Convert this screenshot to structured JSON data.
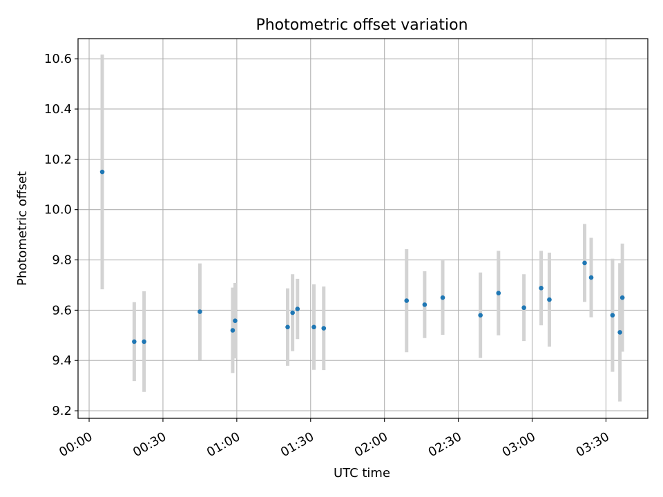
{
  "chart_data": {
    "type": "scatter",
    "title": "Photometric offset variation",
    "xlabel": "UTC time",
    "ylabel": "Photometric offset",
    "x_axis": {
      "type": "time",
      "range_minutes": [
        -4.5,
        227
      ],
      "ticks": [
        {
          "minutes": 0,
          "label": "00:00"
        },
        {
          "minutes": 30,
          "label": "00:30"
        },
        {
          "minutes": 60,
          "label": "01:00"
        },
        {
          "minutes": 90,
          "label": "01:30"
        },
        {
          "minutes": 120,
          "label": "02:00"
        },
        {
          "minutes": 150,
          "label": "02:30"
        },
        {
          "minutes": 180,
          "label": "03:00"
        },
        {
          "minutes": 210,
          "label": "03:30"
        }
      ]
    },
    "y_axis": {
      "ylim": [
        9.17,
        10.68
      ],
      "ticks": [
        {
          "value": 9.2,
          "label": "9.2"
        },
        {
          "value": 9.4,
          "label": "9.4"
        },
        {
          "value": 9.6,
          "label": "9.6"
        },
        {
          "value": 9.8,
          "label": "9.8"
        },
        {
          "value": 10.0,
          "label": "10.0"
        },
        {
          "value": 10.2,
          "label": "10.2"
        },
        {
          "value": 10.4,
          "label": "10.4"
        },
        {
          "value": 10.6,
          "label": "10.6"
        }
      ]
    },
    "grid": true,
    "marker_color": "#1f77b4",
    "errorbar_color": "#d3d3d3",
    "points": [
      {
        "time": "00:05:20",
        "y": 10.15,
        "err": 0.467
      },
      {
        "time": "00:18:20",
        "y": 9.475,
        "err": 0.157
      },
      {
        "time": "00:22:20",
        "y": 9.475,
        "err": 0.2
      },
      {
        "time": "00:45:00",
        "y": 9.594,
        "err": 0.192
      },
      {
        "time": "00:58:20",
        "y": 9.52,
        "err": 0.17
      },
      {
        "time": "00:59:20",
        "y": 9.558,
        "err": 0.15
      },
      {
        "time": "01:20:40",
        "y": 9.533,
        "err": 0.154
      },
      {
        "time": "01:22:40",
        "y": 9.59,
        "err": 0.153
      },
      {
        "time": "01:24:40",
        "y": 9.605,
        "err": 0.12
      },
      {
        "time": "01:31:20",
        "y": 9.533,
        "err": 0.17
      },
      {
        "time": "01:35:20",
        "y": 9.528,
        "err": 0.166
      },
      {
        "time": "02:09:00",
        "y": 9.638,
        "err": 0.205
      },
      {
        "time": "02:16:20",
        "y": 9.622,
        "err": 0.133
      },
      {
        "time": "02:23:40",
        "y": 9.65,
        "err": 0.148
      },
      {
        "time": "02:39:00",
        "y": 9.58,
        "err": 0.17
      },
      {
        "time": "02:46:20",
        "y": 9.668,
        "err": 0.168
      },
      {
        "time": "02:56:40",
        "y": 9.61,
        "err": 0.133
      },
      {
        "time": "03:03:40",
        "y": 9.688,
        "err": 0.148
      },
      {
        "time": "03:07:00",
        "y": 9.642,
        "err": 0.187
      },
      {
        "time": "03:21:20",
        "y": 9.788,
        "err": 0.155
      },
      {
        "time": "03:24:00",
        "y": 9.73,
        "err": 0.158
      },
      {
        "time": "03:32:40",
        "y": 9.58,
        "err": 0.225
      },
      {
        "time": "03:35:40",
        "y": 9.512,
        "err": 0.275
      },
      {
        "time": "03:36:40",
        "y": 9.65,
        "err": 0.215
      }
    ]
  }
}
